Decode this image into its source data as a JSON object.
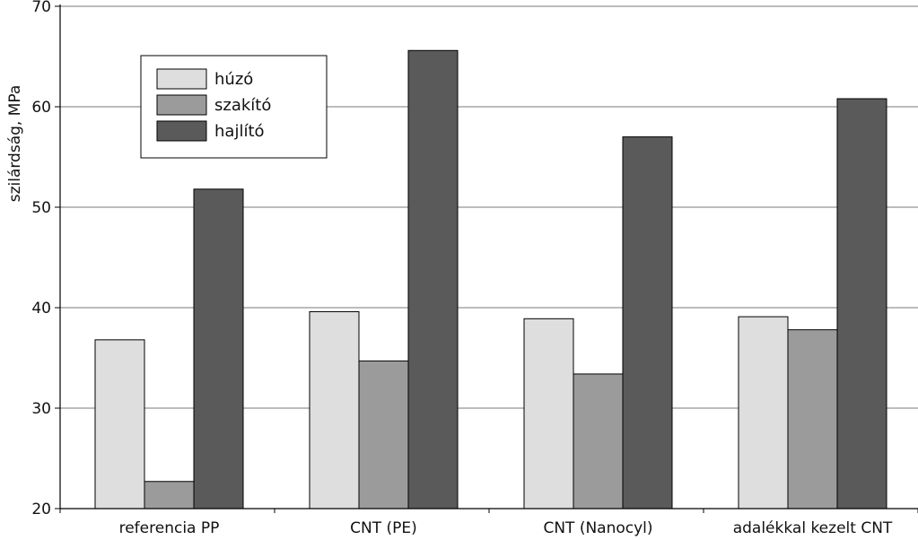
{
  "chart_data": {
    "type": "bar",
    "title": "",
    "xlabel": "",
    "ylabel": "szilárdság, MPa",
    "ylim": [
      20,
      70
    ],
    "yticks": [
      20,
      30,
      40,
      50,
      60,
      70
    ],
    "grid": true,
    "legend_position": "top-left",
    "categories": [
      "referencia PP",
      "CNT (PE)",
      "CNT (Nanocyl)",
      "adalékkal kezelt CNT"
    ],
    "series": [
      {
        "name": "húzó",
        "color": "#dedede",
        "values": [
          36.8,
          39.6,
          38.9,
          39.1
        ]
      },
      {
        "name": "szakító",
        "color": "#9b9b9b",
        "values": [
          22.7,
          34.7,
          33.4,
          37.8
        ]
      },
      {
        "name": "hajlító",
        "color": "#5a5a5a",
        "values": [
          51.8,
          65.6,
          57.0,
          60.8
        ]
      }
    ]
  }
}
